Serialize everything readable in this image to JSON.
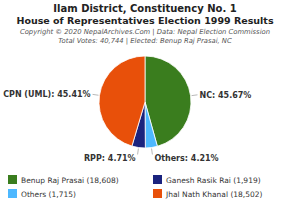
{
  "chart_data": {
    "type": "pie",
    "title": "Ilam District, Constituency No. 1",
    "subtitle": "House of Representatives Election 1999 Results",
    "annotations": [
      "Copyright © 2020 NepalArchives.Com | Data: Nepal Election Commission",
      "Total Votes: 40,744 | Elected: Benup Raj Prasai, NC"
    ],
    "categories": [
      "Benup Raj Prasai (18,608)",
      "Others (1,715)",
      "Ganesh Rasik Rai (1,919)",
      "Jhal Nath Khanal (18,502)"
    ],
    "values": [
      45.67,
      4.21,
      4.71,
      45.41
    ],
    "value_labels": [
      "NC: 45.67%",
      "Others: 4.21%",
      "RPP: 4.71%",
      "CPN (UML): 45.41%"
    ],
    "colors": [
      "#3a7d1e",
      "#4db8ff",
      "#1a237e",
      "#e8500a"
    ],
    "data_labels": true,
    "legend": "bottom"
  }
}
